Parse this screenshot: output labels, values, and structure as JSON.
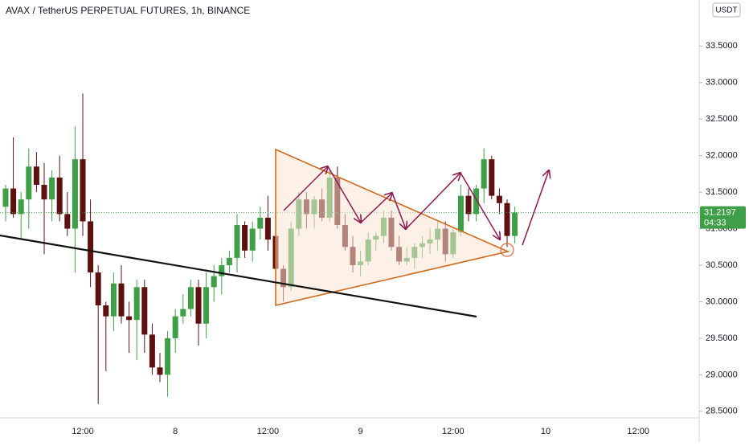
{
  "chart_data": {
    "type": "candlestick",
    "title": "AVAX / TetherUS PERPETUAL FUTURES, 1h, BINANCE",
    "currency": "USDT",
    "up_color": "#3f9f48",
    "down_color": "#5c1010",
    "categories": [
      null,
      null,
      null,
      null,
      null,
      null,
      null,
      null,
      null,
      null,
      "12:00",
      null,
      null,
      null,
      null,
      null,
      null,
      null,
      null,
      null,
      null,
      null,
      "8",
      null,
      null,
      null,
      null,
      null,
      null,
      null,
      null,
      null,
      null,
      null,
      "12:00",
      null,
      null,
      null,
      null,
      null,
      null,
      null,
      null,
      null,
      null,
      null,
      "9",
      null,
      null,
      null,
      null,
      null,
      null,
      null,
      null,
      null,
      null,
      null,
      "12:00",
      null,
      null,
      null,
      null,
      null,
      null,
      null,
      null,
      null,
      null,
      null,
      "10",
      null,
      null,
      null,
      null,
      null,
      null,
      null,
      null,
      null,
      null,
      null,
      "12:00",
      null,
      null,
      null,
      null,
      null,
      null,
      null
    ],
    "open": [
      31.3,
      31.55,
      31.2,
      31.4,
      31.85,
      31.6,
      31.4,
      31.7,
      31.2,
      31.0,
      31.95,
      31.1,
      30.4,
      29.95,
      29.8,
      30.25,
      29.8,
      29.75,
      30.2,
      29.55,
      29.1,
      29.0,
      29.5,
      29.8,
      29.9,
      30.2,
      29.7,
      30.2,
      30.35,
      30.5,
      30.6,
      31.05,
      30.7,
      31.0,
      31.15,
      30.9,
      30.45,
      30.2,
      31.0,
      31.4,
      31.2,
      31.4,
      31.15,
      31.7,
      31.05,
      30.75,
      30.5,
      30.55,
      30.85,
      30.9,
      31.15,
      30.75,
      30.55,
      30.6,
      30.75,
      30.8,
      30.85,
      31.0,
      30.65,
      30.95,
      31.45,
      31.2,
      31.55,
      31.95,
      31.45,
      31.35,
      30.9,
      null,
      null,
      null,
      null,
      null,
      null,
      null,
      null,
      null,
      null,
      null,
      null,
      null,
      null,
      null,
      null,
      null,
      null,
      null,
      null,
      null,
      null,
      null
    ],
    "high": [
      31.6,
      32.25,
      31.5,
      32.1,
      32.05,
      31.9,
      31.8,
      32.0,
      31.5,
      32.4,
      32.85,
      31.4,
      30.5,
      30.0,
      30.4,
      30.5,
      30.0,
      30.3,
      30.3,
      29.7,
      29.3,
      29.6,
      29.9,
      30.1,
      30.3,
      30.3,
      30.4,
      30.5,
      30.6,
      30.7,
      31.2,
      31.1,
      31.1,
      31.3,
      31.45,
      31.0,
      30.5,
      31.1,
      31.5,
      31.5,
      31.45,
      31.55,
      31.8,
      31.85,
      31.2,
      30.9,
      30.7,
      30.95,
      30.95,
      31.25,
      31.25,
      30.9,
      30.75,
      30.8,
      30.9,
      31.0,
      31.1,
      31.1,
      31.0,
      31.6,
      31.55,
      31.6,
      32.1,
      32.0,
      31.55,
      31.4,
      31.3,
      null,
      null,
      null,
      null,
      null,
      null,
      null,
      null,
      null,
      null,
      null,
      null,
      null,
      null,
      null,
      null,
      null,
      null,
      null,
      null,
      null,
      null,
      null
    ],
    "low": [
      31.1,
      31.15,
      30.85,
      31.0,
      31.5,
      30.65,
      31.1,
      31.1,
      30.9,
      30.4,
      30.9,
      30.2,
      28.6,
      29.05,
      29.6,
      29.7,
      29.3,
      29.2,
      29.3,
      29.0,
      28.9,
      28.7,
      29.3,
      29.7,
      29.8,
      29.4,
      29.5,
      30.0,
      30.1,
      30.4,
      30.4,
      30.6,
      30.55,
      30.85,
      30.7,
      30.3,
      30.0,
      30.15,
      30.9,
      31.0,
      31.0,
      31.1,
      31.1,
      31.0,
      30.7,
      30.4,
      30.35,
      30.5,
      30.7,
      30.8,
      30.7,
      30.5,
      30.5,
      30.45,
      30.6,
      30.65,
      30.7,
      30.55,
      30.6,
      30.9,
      31.1,
      31.1,
      31.35,
      31.4,
      31.2,
      30.75,
      30.8,
      null,
      null,
      null,
      null,
      null,
      null,
      null,
      null,
      null,
      null,
      null,
      null,
      null,
      null,
      null,
      null,
      null,
      null,
      null,
      null,
      null,
      null,
      null
    ],
    "close": [
      31.55,
      31.2,
      31.4,
      31.85,
      31.6,
      31.4,
      31.7,
      31.2,
      31.0,
      31.95,
      31.1,
      30.4,
      29.95,
      29.8,
      30.25,
      29.8,
      29.75,
      30.2,
      29.55,
      29.1,
      29.0,
      29.5,
      29.8,
      29.9,
      30.2,
      29.7,
      30.2,
      30.35,
      30.5,
      30.6,
      31.05,
      30.7,
      31.0,
      31.15,
      30.85,
      30.45,
      30.2,
      31.0,
      31.4,
      31.2,
      31.4,
      31.15,
      31.7,
      31.05,
      30.75,
      30.5,
      30.55,
      30.85,
      30.9,
      31.15,
      30.75,
      30.55,
      30.6,
      30.75,
      30.8,
      30.85,
      31.0,
      30.65,
      30.95,
      31.45,
      31.2,
      31.55,
      31.95,
      31.45,
      31.35,
      30.9,
      31.22,
      null,
      null,
      null,
      null,
      null,
      null,
      null,
      null,
      null,
      null,
      null,
      null,
      null,
      null,
      null,
      null,
      null,
      null,
      null,
      null,
      null,
      null,
      null
    ],
    "last_price": 31.2197,
    "countdown": "04:33",
    "ylim": [
      28.41,
      34.13
    ],
    "yticks": [
      {
        "value": 28.5,
        "label": "28.5000"
      },
      {
        "value": 29,
        "label": "29.0000"
      },
      {
        "value": 29.5,
        "label": "29.5000"
      },
      {
        "value": 30,
        "label": "30.0000"
      },
      {
        "value": 30.5,
        "label": "30.5000"
      },
      {
        "value": 31,
        "label": "31.0000"
      },
      {
        "value": 31.5,
        "label": "31.5000"
      },
      {
        "value": 32,
        "label": "32.0000"
      },
      {
        "value": 32.5,
        "label": "32.5000"
      },
      {
        "value": 33,
        "label": "33.0000"
      },
      {
        "value": 33.5,
        "label": "33.5000"
      }
    ]
  }
}
